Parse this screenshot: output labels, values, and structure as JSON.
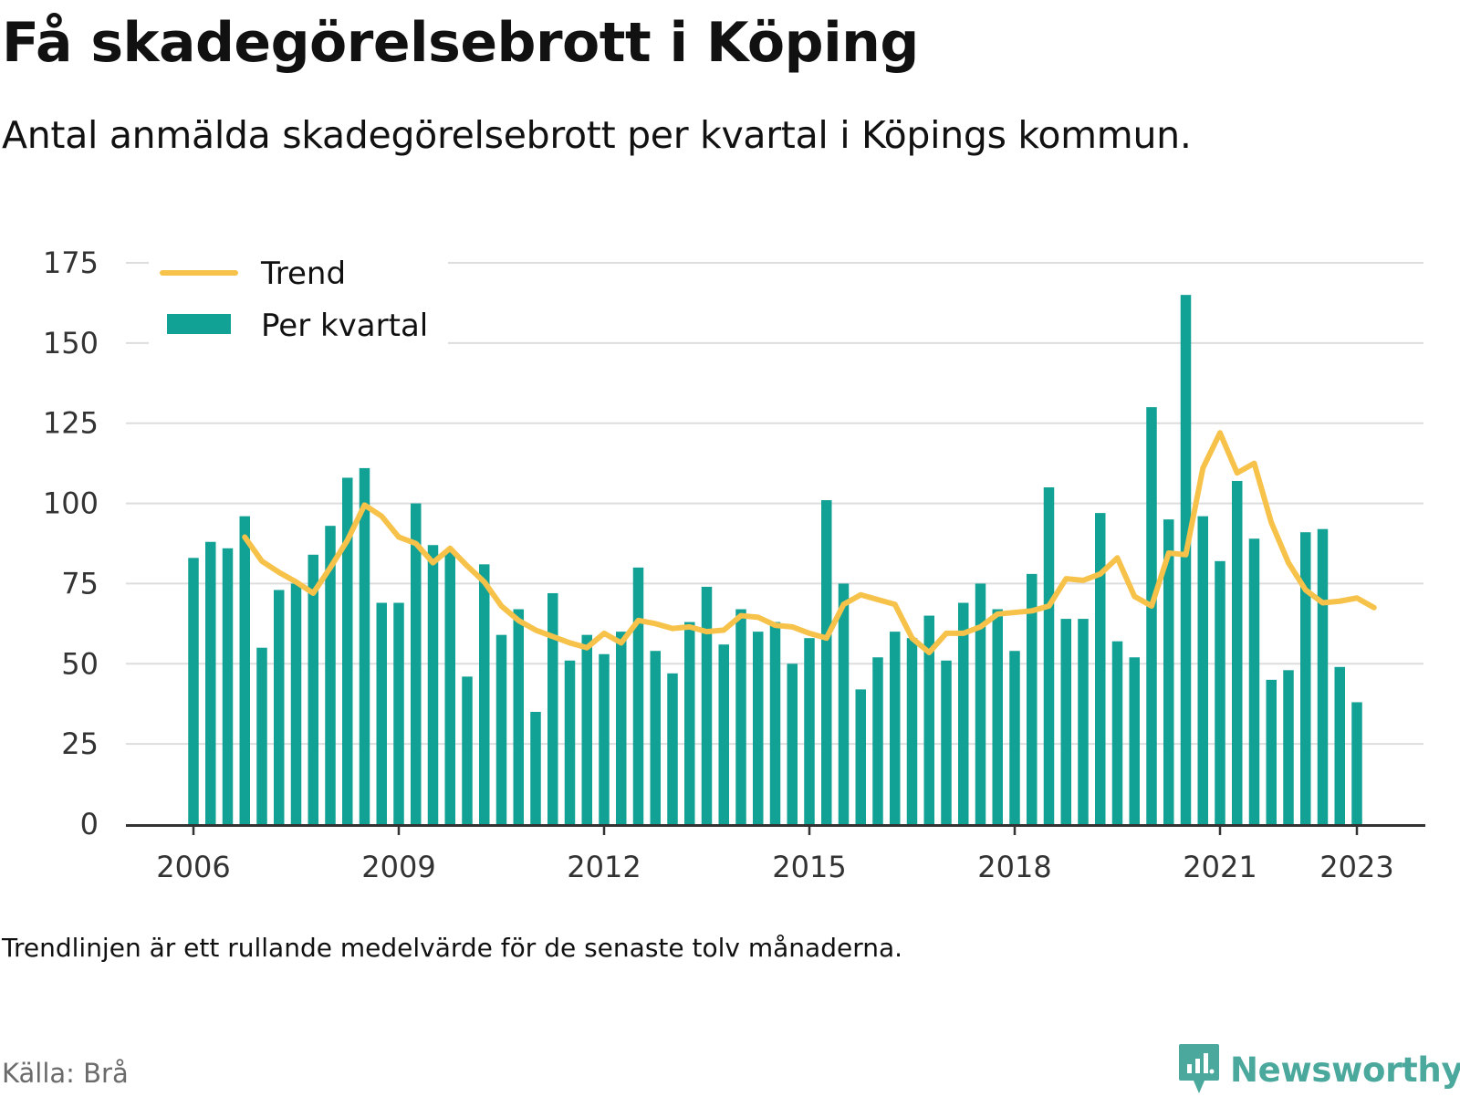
{
  "title": "Få skadegörelsebrott i Köping",
  "subtitle": "Antal anmälda skadegörelsebrott per kvartal i Köpings kommun.",
  "note": "Trendlinjen är ett rullande medelvärde för de senaste tolv månaderna.",
  "source": "Källa: Brå",
  "brand": "Newsworthy",
  "colors": {
    "bar": "#12a195",
    "trend": "#f7c24a",
    "grid": "#dddddd",
    "axis": "#333333",
    "brand": "#4aa89c"
  },
  "chart_data": {
    "type": "bar",
    "x_start": "2006 Q1",
    "x_ticks": [
      "2006",
      "2009",
      "2012",
      "2015",
      "2018",
      "2021",
      "2023"
    ],
    "y_ticks": [
      "0",
      "25",
      "50",
      "75",
      "100",
      "125",
      "150",
      "175"
    ],
    "ylim": [
      0,
      175
    ],
    "grid": true,
    "legend_position": "top-left",
    "series": [
      {
        "name": "Per kvartal",
        "type": "bar",
        "values": [
          83,
          88,
          86,
          96,
          55,
          73,
          75,
          84,
          93,
          108,
          111,
          69,
          69,
          100,
          87,
          85,
          46,
          81,
          59,
          67,
          35,
          72,
          51,
          59,
          53,
          60,
          80,
          54,
          47,
          63,
          74,
          56,
          67,
          60,
          63,
          50,
          58,
          101,
          75,
          42,
          52,
          60,
          58,
          65,
          51,
          69,
          75,
          67,
          54,
          78,
          105,
          64,
          64,
          97,
          57,
          52,
          130,
          95,
          165,
          96,
          82,
          107,
          89,
          45,
          48,
          91,
          92,
          49,
          38
        ]
      },
      {
        "name": "Trend",
        "type": "line",
        "start_index": 3,
        "values": [
          89.5,
          82,
          78.5,
          75.5,
          72,
          80,
          88.5,
          99.5,
          96,
          89.5,
          87.5,
          81.5,
          86,
          80.5,
          75.5,
          68,
          63.5,
          60.5,
          58.5,
          56.5,
          55,
          59.5,
          56.5,
          63.5,
          62.5,
          61,
          61.5,
          60,
          60.5,
          65,
          64.5,
          62,
          61.5,
          59.5,
          58,
          68.5,
          71.5,
          70,
          68.5,
          58,
          53.5,
          59.5,
          59.5,
          61.5,
          65.5,
          66,
          66.5,
          68,
          76.5,
          76,
          78,
          83,
          71,
          68,
          84.5,
          84,
          111,
          122,
          109.5,
          112.5,
          94,
          81.5,
          73,
          69,
          69.5,
          70.5,
          67.5
        ]
      }
    ]
  }
}
